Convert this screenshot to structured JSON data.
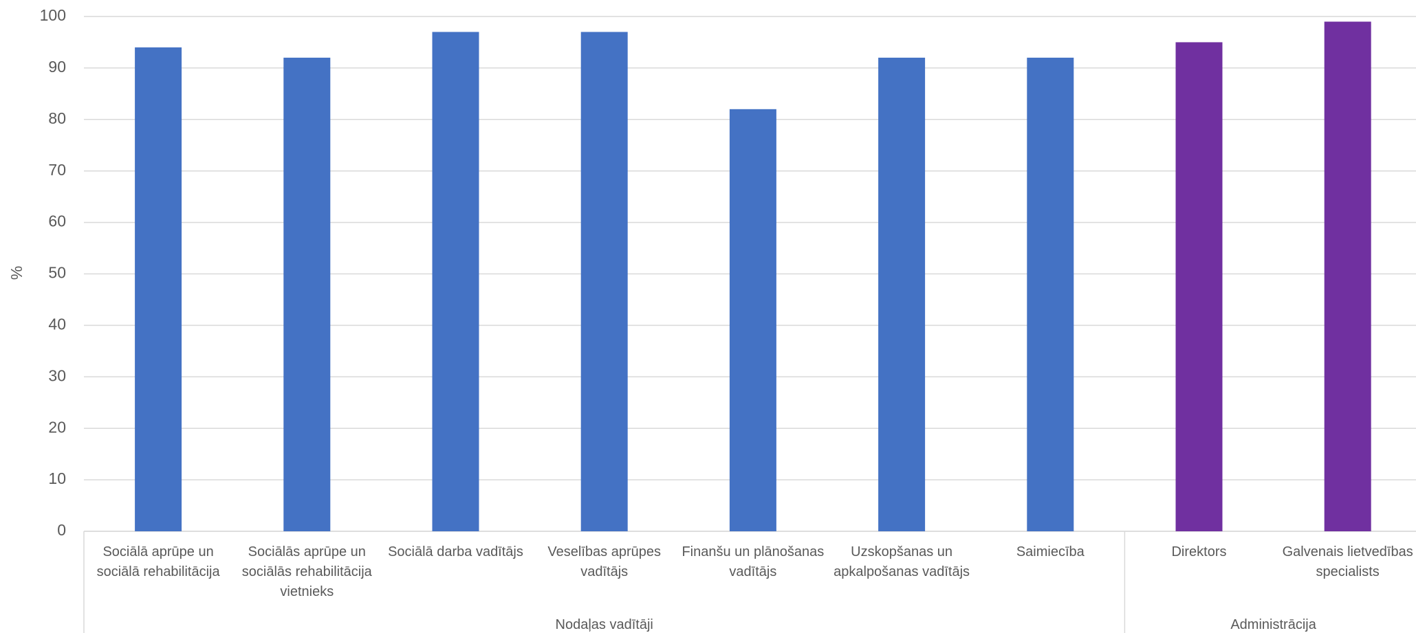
{
  "chart_data": {
    "type": "bar",
    "y_label": "%",
    "ylim": [
      0,
      100
    ],
    "yticks": [
      0,
      10,
      20,
      30,
      40,
      50,
      60,
      70,
      80,
      90,
      100
    ],
    "grid": true,
    "groups": [
      {
        "name": "Nodaļas vadītāji",
        "color": "#4472c4",
        "categories": [
          "Sociālā aprūpe un sociālā rehabilitācija",
          "Sociālās aprūpe un sociālās rehabilitācija vietnieks",
          "Sociālā darba vadītājs",
          "Veselības aprūpes vadītājs",
          "Finanšu un plānošanas vadītājs",
          "Uzskopšanas un apkalpošanas vadītājs",
          "Saimiecība"
        ],
        "values": [
          94,
          92,
          97,
          97,
          82,
          92,
          92
        ]
      },
      {
        "name": "Administrācija",
        "color": "#7030a0",
        "categories": [
          "Direktors",
          "Galvenais lietvedības specialists"
        ],
        "values": [
          95,
          99
        ]
      }
    ]
  }
}
